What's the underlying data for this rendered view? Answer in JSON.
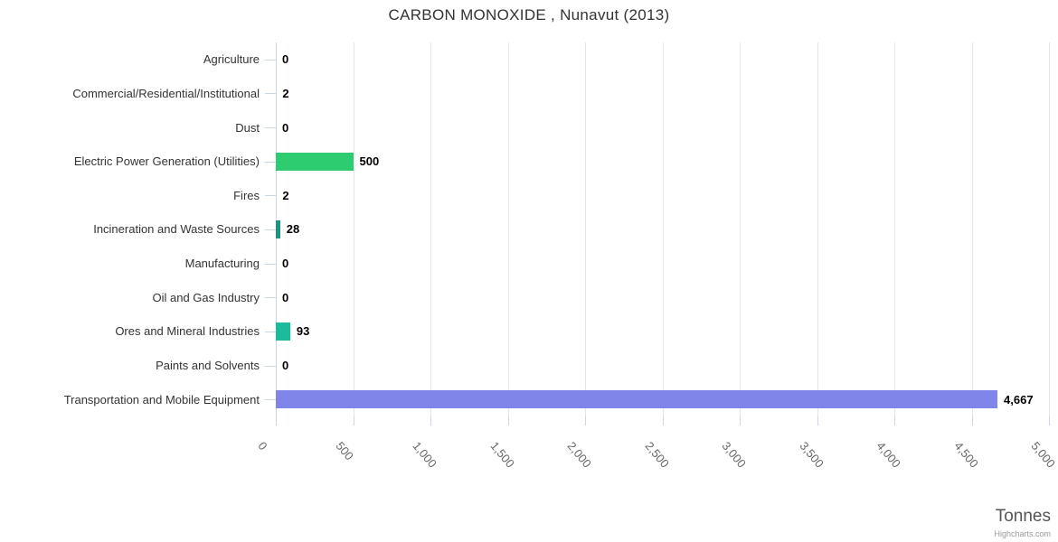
{
  "title": "CARBON MONOXIDE , Nunavut (2013)",
  "credits": "Highcharts.com",
  "chart_data": {
    "type": "bar",
    "orientation": "horizontal",
    "title": "CARBON MONOXIDE , Nunavut (2013)",
    "xlabel": "Tonnes",
    "ylabel": "",
    "xlim": [
      0,
      5000
    ],
    "grid": true,
    "categories": [
      "Agriculture",
      "Commercial/Residential/Institutional",
      "Dust",
      "Electric Power Generation (Utilities)",
      "Fires",
      "Incineration and Waste Sources",
      "Manufacturing",
      "Oil and Gas Industry",
      "Ores and Mineral Industries",
      "Paints and Solvents",
      "Transportation and Mobile Equipment"
    ],
    "values": [
      0,
      2,
      0,
      500,
      2,
      28,
      0,
      0,
      93,
      0,
      4667
    ],
    "value_labels": [
      "0",
      "2",
      "0",
      "500",
      "2",
      "28",
      "0",
      "0",
      "93",
      "0",
      "4,667"
    ],
    "bar_colors": [
      null,
      null,
      null,
      "#2ecc71",
      null,
      "#1f9287",
      null,
      null,
      "#1abc9c",
      null,
      "#8085e9"
    ],
    "x_ticks": [
      "0",
      "500",
      "1,000",
      "1,500",
      "2,000",
      "2,500",
      "3,000",
      "3,500",
      "4,000",
      "4,500",
      "5,000"
    ],
    "x_tick_values": [
      0,
      500,
      1000,
      1500,
      2000,
      2500,
      3000,
      3500,
      4000,
      4500,
      5000
    ],
    "colors": {
      "gridline": "#e6e6e6",
      "axis_line": "#ccd6eb",
      "title_text": "#333333",
      "category_text": "#333333",
      "value_text": "#000000",
      "tick_text": "#666666",
      "axis_title_text": "#555555",
      "credits_text": "#999999"
    }
  }
}
